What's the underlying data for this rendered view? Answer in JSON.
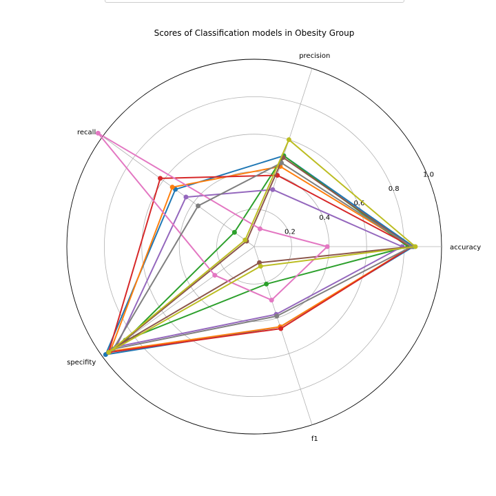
{
  "chart_data": {
    "type": "radar",
    "title": "Scores of Classification models in Obesity Group",
    "axes": [
      "accuracy",
      "precision",
      "recall",
      "specifity",
      "f1"
    ],
    "radial_ticks": [
      {
        "value": 0.2,
        "label": "0.2"
      },
      {
        "value": 0.4,
        "label": "0.4"
      },
      {
        "value": 0.6,
        "label": "0.6"
      },
      {
        "value": 0.8,
        "label": "0.8"
      },
      {
        "value": 1.0,
        "label": "1.0"
      }
    ],
    "rlim": [
      0,
      1.0
    ],
    "grid": true,
    "series": [
      {
        "color": "#1f77b4",
        "values": [
          0.85,
          0.51,
          0.52,
          0.98,
          0.45
        ]
      },
      {
        "color": "#ff7f0e",
        "values": [
          0.84,
          0.45,
          0.54,
          0.95,
          0.45
        ]
      },
      {
        "color": "#2ca02c",
        "values": [
          0.82,
          0.51,
          0.13,
          0.85,
          0.21
        ]
      },
      {
        "color": "#d62728",
        "values": [
          0.84,
          0.4,
          0.62,
          0.96,
          0.46
        ]
      },
      {
        "color": "#9467bd",
        "values": [
          0.79,
          0.32,
          0.45,
          0.91,
          0.38
        ]
      },
      {
        "color": "#8c564b",
        "values": [
          0.84,
          0.5,
          0.05,
          0.9,
          0.09
        ]
      },
      {
        "color": "#e377c2",
        "values": [
          0.39,
          0.1,
          1.03,
          0.26,
          0.3
        ]
      },
      {
        "color": "#7f7f7f",
        "values": [
          0.84,
          0.47,
          0.37,
          0.93,
          0.39
        ]
      },
      {
        "color": "#bcbd22",
        "values": [
          0.86,
          0.6,
          0.06,
          0.96,
          0.11
        ]
      }
    ]
  }
}
